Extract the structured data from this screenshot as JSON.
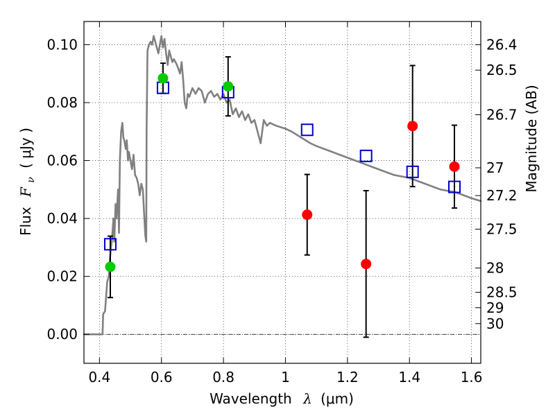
{
  "chart_data": {
    "type": "scatter",
    "xlabel": {
      "prefix": "Wavelength",
      "symbol": "λ",
      "unit": "(μm)"
    },
    "ylabel": {
      "prefix": "Flux",
      "symbol": "F",
      "subscript": "ν",
      "unit": "( μJy )"
    },
    "y2label": "Magnitude (AB)",
    "xlim": [
      0.35,
      1.63
    ],
    "ylim": [
      -0.01,
      0.108
    ],
    "x_ticks": [
      {
        "value": 0.4,
        "label": "0.4"
      },
      {
        "value": 0.6,
        "label": "0.6"
      },
      {
        "value": 0.8,
        "label": "0.8"
      },
      {
        "value": 1.0,
        "label": "1"
      },
      {
        "value": 1.2,
        "label": "1.2"
      },
      {
        "value": 1.4,
        "label": "1.4"
      },
      {
        "value": 1.6,
        "label": "1.6"
      }
    ],
    "y_ticks": [
      {
        "value": 0.0,
        "label": "0.00"
      },
      {
        "value": 0.02,
        "label": "0.02"
      },
      {
        "value": 0.04,
        "label": "0.04"
      },
      {
        "value": 0.06,
        "label": "0.06"
      },
      {
        "value": 0.08,
        "label": "0.08"
      },
      {
        "value": 0.1,
        "label": "0.10"
      }
    ],
    "magnitude_ticks": [
      {
        "flux": 0.1,
        "label": "26.4"
      },
      {
        "flux": 0.0912,
        "label": "26.5"
      },
      {
        "flux": 0.0758,
        "label": "26.7"
      },
      {
        "flux": 0.0575,
        "label": "27"
      },
      {
        "flux": 0.0479,
        "label": "27.2"
      },
      {
        "flux": 0.0363,
        "label": "27.5"
      },
      {
        "flux": 0.0229,
        "label": "28"
      },
      {
        "flux": 0.0145,
        "label": "28.5"
      },
      {
        "flux": 0.0092,
        "label": "29"
      },
      {
        "flux": 0.0037,
        "label": "30"
      }
    ],
    "grid": true,
    "zero_line": true,
    "colors": {
      "model": "#808080",
      "green": "#00cc00",
      "red": "#ff0000",
      "squares": "#0000cc",
      "errorbars": "#000000"
    },
    "model_sed": {
      "x": [
        0.35,
        0.4,
        0.41,
        0.412,
        0.418,
        0.425,
        0.43,
        0.433,
        0.437,
        0.44,
        0.445,
        0.448,
        0.452,
        0.455,
        0.46,
        0.463,
        0.466,
        0.47,
        0.474,
        0.477,
        0.48,
        0.485,
        0.488,
        0.492,
        0.495,
        0.5,
        0.505,
        0.51,
        0.515,
        0.52,
        0.525,
        0.53,
        0.535,
        0.54,
        0.545,
        0.548,
        0.551,
        0.552,
        0.555,
        0.56,
        0.565,
        0.57,
        0.575,
        0.58,
        0.585,
        0.59,
        0.595,
        0.6,
        0.605,
        0.61,
        0.615,
        0.62,
        0.625,
        0.63,
        0.635,
        0.64,
        0.65,
        0.66,
        0.665,
        0.67,
        0.675,
        0.68,
        0.685,
        0.69,
        0.7,
        0.71,
        0.72,
        0.73,
        0.74,
        0.75,
        0.76,
        0.77,
        0.78,
        0.79,
        0.8,
        0.81,
        0.82,
        0.83,
        0.84,
        0.85,
        0.86,
        0.87,
        0.88,
        0.89,
        0.9,
        0.91,
        0.92,
        0.93,
        0.94,
        0.95,
        0.97,
        1.0,
        1.02,
        1.05,
        1.08,
        1.1,
        1.15,
        1.2,
        1.25,
        1.3,
        1.35,
        1.4,
        1.45,
        1.5,
        1.55,
        1.6,
        1.63
      ],
      "y": [
        0.0,
        0.0,
        0.0,
        0.007,
        0.008,
        0.018,
        0.02,
        0.025,
        0.03,
        0.032,
        0.04,
        0.032,
        0.045,
        0.04,
        0.05,
        0.035,
        0.06,
        0.07,
        0.073,
        0.068,
        0.067,
        0.064,
        0.067,
        0.06,
        0.063,
        0.06,
        0.057,
        0.062,
        0.055,
        0.054,
        0.052,
        0.048,
        0.052,
        0.05,
        0.04,
        0.034,
        0.032,
        0.07,
        0.098,
        0.1,
        0.101,
        0.1,
        0.103,
        0.101,
        0.099,
        0.097,
        0.1,
        0.103,
        0.099,
        0.102,
        0.097,
        0.093,
        0.098,
        0.096,
        0.094,
        0.095,
        0.093,
        0.09,
        0.094,
        0.088,
        0.08,
        0.078,
        0.083,
        0.082,
        0.085,
        0.083,
        0.085,
        0.084,
        0.08,
        0.083,
        0.084,
        0.082,
        0.083,
        0.081,
        0.083,
        0.08,
        0.081,
        0.076,
        0.078,
        0.075,
        0.077,
        0.074,
        0.076,
        0.073,
        0.074,
        0.07,
        0.066,
        0.074,
        0.072,
        0.073,
        0.072,
        0.071,
        0.07,
        0.068,
        0.066,
        0.065,
        0.063,
        0.061,
        0.059,
        0.057,
        0.055,
        0.054,
        0.052,
        0.05,
        0.049,
        0.047,
        0.046
      ]
    },
    "observed_green": {
      "x": [
        0.435,
        0.605,
        0.815
      ],
      "y": [
        0.0233,
        0.0884,
        0.0856
      ],
      "err_low": [
        0.0106,
        0.0052,
        0.0102
      ],
      "err_high": [
        0.0106,
        0.0052,
        0.0102
      ]
    },
    "observed_red": {
      "x": [
        1.07,
        1.26,
        1.41,
        1.545
      ],
      "y": [
        0.0413,
        0.0243,
        0.0719,
        0.0579
      ],
      "err_low": [
        0.0139,
        0.0253,
        0.0209,
        0.0143
      ],
      "err_high": [
        0.0139,
        0.0253,
        0.0209,
        0.0143
      ]
    },
    "synthetic_squares": {
      "x": [
        0.435,
        0.605,
        0.815,
        1.07,
        1.26,
        1.41,
        1.545
      ],
      "y": [
        0.0311,
        0.0851,
        0.0836,
        0.0706,
        0.0616,
        0.0561,
        0.0509
      ]
    }
  }
}
